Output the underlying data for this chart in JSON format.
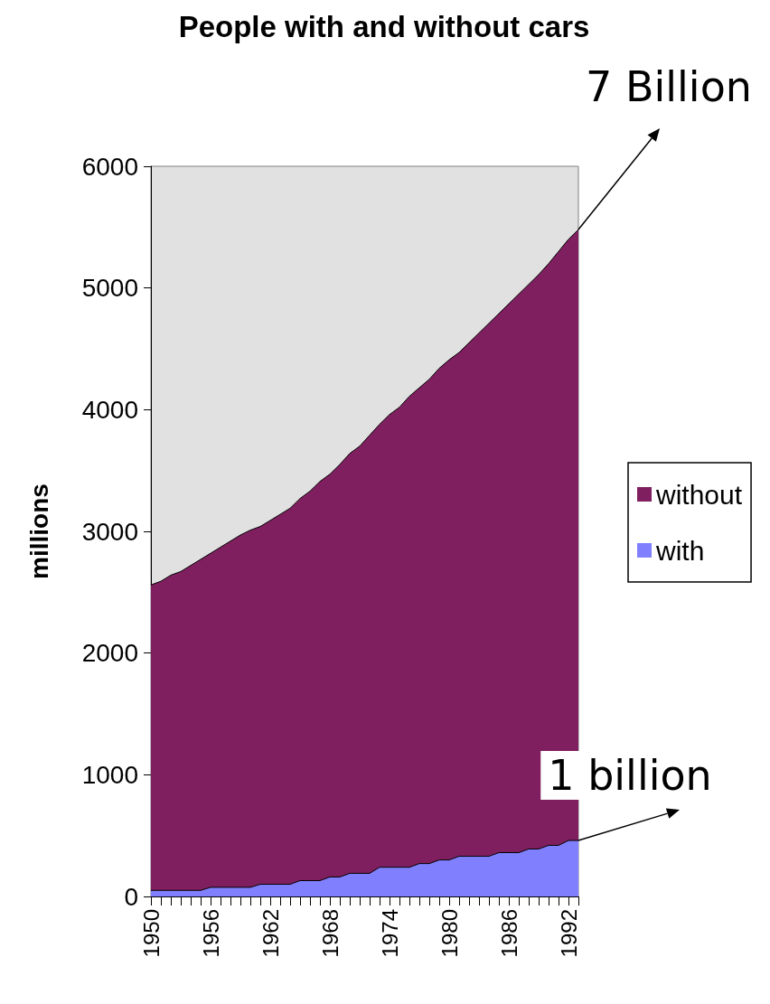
{
  "chart_data": {
    "type": "area",
    "title": "People with and without cars",
    "ylabel": "millions",
    "stacked": true,
    "categories": [
      "1950",
      null,
      null,
      null,
      null,
      null,
      "1956",
      null,
      null,
      null,
      null,
      null,
      "1962",
      null,
      null,
      null,
      null,
      null,
      "1968",
      null,
      null,
      null,
      null,
      null,
      "1974",
      null,
      null,
      null,
      null,
      null,
      "1980",
      null,
      null,
      null,
      null,
      null,
      "1986",
      null,
      null,
      null,
      null,
      null,
      "1992",
      null
    ],
    "series": [
      {
        "name": "with",
        "color": "#8080ff",
        "values": [
          50,
          50,
          50,
          50,
          50,
          50,
          75,
          75,
          75,
          75,
          75,
          100,
          100,
          100,
          100,
          130,
          130,
          130,
          160,
          160,
          190,
          190,
          190,
          240,
          240,
          240,
          240,
          270,
          270,
          300,
          300,
          330,
          330,
          330,
          330,
          360,
          360,
          360,
          390,
          390,
          420,
          420,
          460,
          460
        ]
      },
      {
        "name": "without",
        "color": "#7f1f5f",
        "values": [
          2510,
          2540,
          2590,
          2620,
          2670,
          2720,
          2745,
          2795,
          2845,
          2895,
          2935,
          2940,
          2990,
          3040,
          3090,
          3140,
          3200,
          3280,
          3310,
          3390,
          3450,
          3510,
          3600,
          3640,
          3720,
          3780,
          3870,
          3910,
          3980,
          4040,
          4110,
          4140,
          4220,
          4300,
          4380,
          4430,
          4510,
          4590,
          4640,
          4720,
          4780,
          4880,
          4940,
          5020
        ]
      }
    ],
    "ylim": [
      0,
      6000
    ],
    "yticks": [
      0,
      1000,
      2000,
      3000,
      4000,
      5000,
      6000
    ],
    "grid": false,
    "legend": "right",
    "annotations": [
      "7 Billion",
      "1 billion"
    ]
  }
}
